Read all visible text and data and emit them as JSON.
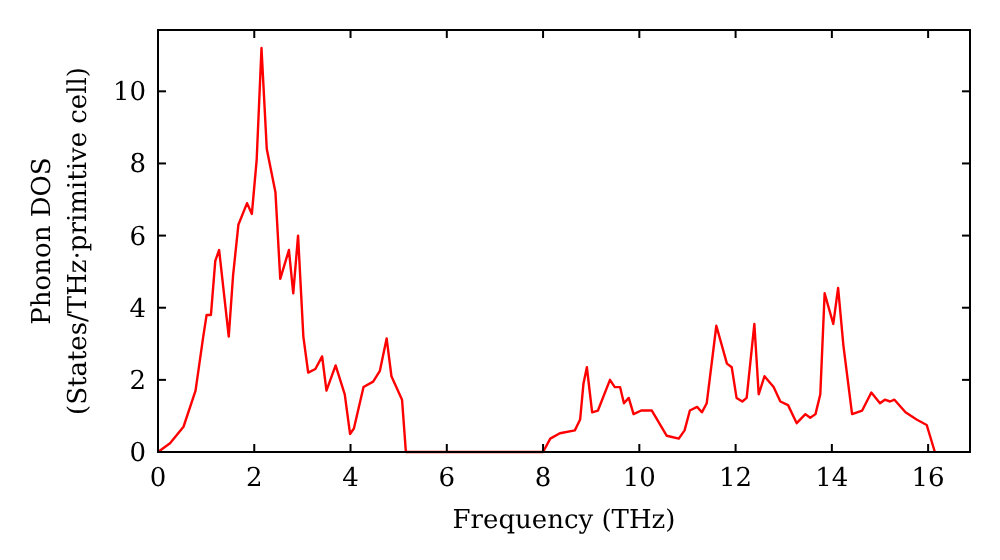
{
  "chart_data": {
    "type": "line",
    "xlabel": "Frequency (THz)",
    "ylabel": "Phonon DOS\n(States/THz·primitive cell)",
    "xlim": [
      0,
      16.87
    ],
    "ylim": [
      0,
      11.7
    ],
    "xticks": [
      0,
      2,
      4,
      6,
      8,
      10,
      12,
      14,
      16
    ],
    "yticks": [
      0,
      2,
      4,
      6,
      8,
      10
    ],
    "grid": false,
    "line_style": "solid",
    "marker": "none",
    "series": [
      {
        "color": "#ff0000",
        "x": [
          0,
          0.25,
          0.53,
          0.78,
          0.94,
          1.01,
          1.1,
          1.19,
          1.27,
          1.47,
          1.56,
          1.67,
          1.85,
          1.95,
          2.05,
          2.15,
          2.26,
          2.44,
          2.54,
          2.72,
          2.81,
          2.91,
          3.02,
          3.12,
          3.27,
          3.41,
          3.5,
          3.69,
          3.88,
          3.99,
          4.07,
          4.27,
          4.47,
          4.61,
          4.75,
          4.85,
          5.07,
          5.15,
          8.0,
          8.15,
          8.35,
          8.66,
          8.77,
          8.84,
          8.91,
          9.02,
          9.14,
          9.39,
          9.49,
          9.6,
          9.68,
          9.78,
          9.88,
          10.04,
          10.26,
          10.57,
          10.82,
          10.94,
          11.05,
          11.2,
          11.3,
          11.4,
          11.6,
          11.82,
          11.92,
          12.02,
          12.14,
          12.23,
          12.39,
          12.48,
          12.6,
          12.79,
          12.93,
          13.09,
          13.27,
          13.45,
          13.55,
          13.66,
          13.76,
          13.85,
          14.03,
          14.13,
          14.24,
          14.42,
          14.63,
          14.82,
          15.0,
          15.1,
          15.21,
          15.3,
          15.53,
          15.76,
          15.97,
          16.14
        ],
        "values": [
          0,
          0.24,
          0.7,
          1.7,
          3.2,
          3.8,
          3.8,
          5.3,
          5.6,
          3.2,
          4.9,
          6.3,
          6.9,
          6.6,
          8.1,
          11.2,
          8.4,
          7.2,
          4.8,
          5.6,
          4.4,
          6.0,
          3.2,
          2.2,
          2.3,
          2.65,
          1.7,
          2.4,
          1.6,
          0.5,
          0.65,
          1.8,
          1.95,
          2.25,
          3.15,
          2.1,
          1.45,
          0,
          0,
          0.37,
          0.52,
          0.6,
          0.9,
          1.9,
          2.35,
          1.1,
          1.15,
          2.0,
          1.8,
          1.8,
          1.35,
          1.5,
          1.05,
          1.15,
          1.15,
          0.45,
          0.37,
          0.6,
          1.15,
          1.25,
          1.1,
          1.35,
          3.5,
          2.45,
          2.35,
          1.5,
          1.4,
          1.5,
          3.55,
          1.6,
          2.1,
          1.8,
          1.4,
          1.3,
          0.8,
          1.05,
          0.95,
          1.05,
          1.6,
          4.4,
          3.55,
          4.55,
          2.95,
          1.05,
          1.15,
          1.65,
          1.35,
          1.45,
          1.4,
          1.45,
          1.1,
          0.9,
          0.75,
          0
        ]
      }
    ]
  }
}
